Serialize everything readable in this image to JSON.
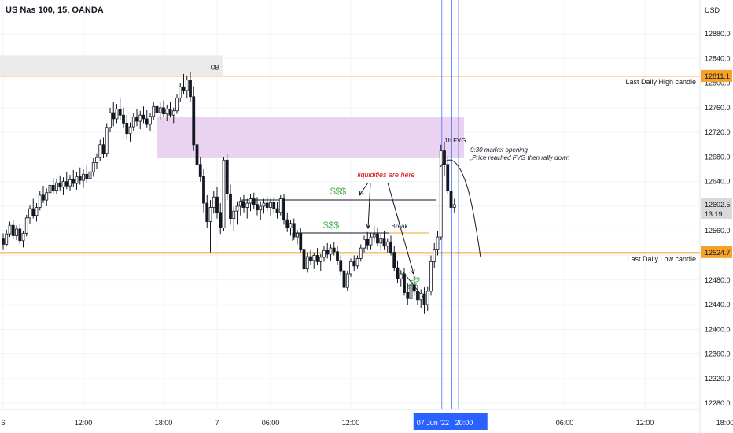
{
  "header": {
    "title": "US Nas 100, 15, OANDA",
    "currency": "USD"
  },
  "colors": {
    "bull": "#ffffff",
    "bear": "#131722",
    "wick": "#131722",
    "level": "#f7a128",
    "fvg_zone": "#ead3f0",
    "ob_zone": "#ebebeb",
    "grid": "#f0f3fa",
    "vlines": "#2962ff",
    "dollar": "#4caf50",
    "note_red": "#d50000"
  },
  "chart_data": {
    "type": "candlestick",
    "y_axis": {
      "min": 12270,
      "max": 12935,
      "ticks": [
        12280,
        12320,
        12360,
        12400,
        12440,
        12480,
        12520,
        12560,
        12600,
        12640,
        12680,
        12720,
        12760,
        12800,
        12840,
        12880
      ]
    },
    "x_axis": {
      "ticks": [
        {
          "label": "6",
          "bar": 0
        },
        {
          "label": "12:00",
          "bar": 24
        },
        {
          "label": "18:00",
          "bar": 48
        },
        {
          "label": "7",
          "bar": 64
        },
        {
          "label": "06:00",
          "bar": 80
        },
        {
          "label": "12:00",
          "bar": 104
        },
        {
          "label": "06:00",
          "bar": 168
        },
        {
          "label": "12:00",
          "bar": 192
        },
        {
          "label": "18:00",
          "bar": 216
        }
      ],
      "highlight": {
        "label": "07 Jun '22",
        "time": "20:00"
      }
    },
    "price_labels": [
      {
        "value": 12811.1,
        "text": "12811.1",
        "color": "#f7a128"
      },
      {
        "value": 12602.5,
        "text": "12602.5",
        "sub": "13:19",
        "color": "#d9d9d9"
      },
      {
        "value": 12524.7,
        "text": "12524.7",
        "color": "#f7a128"
      }
    ],
    "levels": [
      {
        "price": 12811.1,
        "label": "Last Daily High candle"
      },
      {
        "price": 12524.7,
        "label": "Last Daily Low candle"
      }
    ],
    "zones": [
      {
        "name": "OB",
        "from_bar": 0,
        "to_bar": 70,
        "top": 12845,
        "bottom": 12811
      },
      {
        "name": "1h FVG",
        "from_bar": 49,
        "to_bar": 145,
        "top": 12745,
        "bottom": 12678
      }
    ],
    "vertical_lines_bars": [
      131,
      134,
      136
    ],
    "candles": [
      [
        12548,
        12556,
        12530,
        12538
      ],
      [
        12538,
        12562,
        12535,
        12555
      ],
      [
        12555,
        12575,
        12550,
        12569
      ],
      [
        12569,
        12578,
        12548,
        12552
      ],
      [
        12552,
        12569,
        12545,
        12563
      ],
      [
        12563,
        12572,
        12538,
        12544
      ],
      [
        12544,
        12560,
        12533,
        12556
      ],
      [
        12556,
        12586,
        12551,
        12581
      ],
      [
        12581,
        12601,
        12572,
        12596
      ],
      [
        12596,
        12612,
        12580,
        12585
      ],
      [
        12585,
        12605,
        12575,
        12598
      ],
      [
        12598,
        12625,
        12593,
        12618
      ],
      [
        12618,
        12633,
        12605,
        12610
      ],
      [
        12610,
        12629,
        12600,
        12622
      ],
      [
        12622,
        12642,
        12615,
        12634
      ],
      [
        12634,
        12646,
        12620,
        12626
      ],
      [
        12626,
        12645,
        12619,
        12638
      ],
      [
        12638,
        12650,
        12625,
        12631
      ],
      [
        12631,
        12647,
        12618,
        12640
      ],
      [
        12640,
        12656,
        12628,
        12633
      ],
      [
        12633,
        12651,
        12625,
        12643
      ],
      [
        12643,
        12659,
        12631,
        12637
      ],
      [
        12637,
        12655,
        12627,
        12648
      ],
      [
        12648,
        12663,
        12635,
        12642
      ],
      [
        12642,
        12660,
        12630,
        12652
      ],
      [
        12652,
        12666,
        12638,
        12645
      ],
      [
        12645,
        12664,
        12633,
        12656
      ],
      [
        12656,
        12678,
        12648,
        12671
      ],
      [
        12671,
        12686,
        12660,
        12679
      ],
      [
        12679,
        12708,
        12674,
        12700
      ],
      [
        12700,
        12712,
        12678,
        12686
      ],
      [
        12686,
        12735,
        12680,
        12728
      ],
      [
        12728,
        12760,
        12720,
        12752
      ],
      [
        12752,
        12770,
        12730,
        12742
      ],
      [
        12742,
        12766,
        12735,
        12758
      ],
      [
        12758,
        12775,
        12740,
        12748
      ],
      [
        12748,
        12760,
        12728,
        12735
      ],
      [
        12735,
        12748,
        12710,
        12718
      ],
      [
        12718,
        12736,
        12705,
        12729
      ],
      [
        12729,
        12752,
        12722,
        12745
      ],
      [
        12745,
        12758,
        12730,
        12738
      ],
      [
        12738,
        12755,
        12725,
        12748
      ],
      [
        12748,
        12762,
        12735,
        12742
      ],
      [
        12742,
        12756,
        12728,
        12733
      ],
      [
        12733,
        12752,
        12722,
        12746
      ],
      [
        12746,
        12770,
        12740,
        12762
      ],
      [
        12762,
        12775,
        12745,
        12752
      ],
      [
        12752,
        12768,
        12740,
        12760
      ],
      [
        12760,
        12772,
        12745,
        12750
      ],
      [
        12750,
        12765,
        12738,
        12758
      ],
      [
        12758,
        12770,
        12744,
        12748
      ],
      [
        12748,
        12760,
        12735,
        12755
      ],
      [
        12755,
        12782,
        12750,
        12776
      ],
      [
        12776,
        12800,
        12770,
        12794
      ],
      [
        12794,
        12815,
        12782,
        12788
      ],
      [
        12788,
        12811,
        12775,
        12805
      ],
      [
        12805,
        12818,
        12770,
        12778
      ],
      [
        12778,
        12795,
        12690,
        12700
      ],
      [
        12700,
        12710,
        12655,
        12668
      ],
      [
        12668,
        12680,
        12640,
        12648
      ],
      [
        12648,
        12660,
        12590,
        12605
      ],
      [
        12605,
        12618,
        12565,
        12575
      ],
      [
        12575,
        12610,
        12525,
        12598
      ],
      [
        12598,
        12625,
        12588,
        12615
      ],
      [
        12615,
        12632,
        12580,
        12590
      ],
      [
        12590,
        12605,
        12555,
        12565
      ],
      [
        12565,
        12680,
        12560,
        12675
      ],
      [
        12675,
        12685,
        12610,
        12620
      ],
      [
        12620,
        12635,
        12570,
        12580
      ],
      [
        12580,
        12600,
        12560,
        12592
      ],
      [
        12592,
        12608,
        12570,
        12600
      ],
      [
        12600,
        12615,
        12585,
        12608
      ],
      [
        12608,
        12618,
        12590,
        12598
      ],
      [
        12598,
        12612,
        12580,
        12605
      ],
      [
        12605,
        12620,
        12592,
        12612
      ],
      [
        12612,
        12622,
        12595,
        12603
      ],
      [
        12603,
        12615,
        12585,
        12594
      ],
      [
        12594,
        12608,
        12578,
        12600
      ],
      [
        12600,
        12612,
        12588,
        12605
      ],
      [
        12605,
        12616,
        12592,
        12598
      ],
      [
        12598,
        12612,
        12585,
        12606
      ],
      [
        12606,
        12615,
        12590,
        12596
      ],
      [
        12596,
        12607,
        12580,
        12590
      ],
      [
        12590,
        12618,
        12585,
        12612
      ],
      [
        12612,
        12620,
        12570,
        12578
      ],
      [
        12578,
        12590,
        12558,
        12565
      ],
      [
        12565,
        12578,
        12552,
        12572
      ],
      [
        12572,
        12580,
        12545,
        12550
      ],
      [
        12550,
        12562,
        12538,
        12556
      ],
      [
        12556,
        12565,
        12525,
        12530
      ],
      [
        12530,
        12540,
        12490,
        12498
      ],
      [
        12498,
        12525,
        12492,
        12518
      ],
      [
        12518,
        12530,
        12505,
        12512
      ],
      [
        12512,
        12525,
        12498,
        12520
      ],
      [
        12520,
        12532,
        12505,
        12510
      ],
      [
        12510,
        12522,
        12495,
        12517
      ],
      [
        12517,
        12535,
        12510,
        12528
      ],
      [
        12528,
        12540,
        12515,
        12522
      ],
      [
        12522,
        12538,
        12512,
        12532
      ],
      [
        12532,
        12542,
        12520,
        12526
      ],
      [
        12526,
        12536,
        12505,
        12512
      ],
      [
        12512,
        12520,
        12488,
        12495
      ],
      [
        12495,
        12505,
        12462,
        12468
      ],
      [
        12468,
        12495,
        12463,
        12490
      ],
      [
        12490,
        12515,
        12485,
        12510
      ],
      [
        12510,
        12520,
        12495,
        12503
      ],
      [
        12503,
        12520,
        12498,
        12515
      ],
      [
        12515,
        12538,
        12510,
        12532
      ],
      [
        12532,
        12552,
        12525,
        12546
      ],
      [
        12546,
        12558,
        12530,
        12537
      ],
      [
        12537,
        12556,
        12530,
        12550
      ],
      [
        12550,
        12568,
        12542,
        12555
      ],
      [
        12555,
        12565,
        12535,
        12540
      ],
      [
        12540,
        12555,
        12528,
        12548
      ],
      [
        12548,
        12560,
        12530,
        12535
      ],
      [
        12535,
        12548,
        12525,
        12542
      ],
      [
        12542,
        12552,
        12520,
        12525
      ],
      [
        12525,
        12535,
        12495,
        12500
      ],
      [
        12500,
        12512,
        12475,
        12482
      ],
      [
        12482,
        12496,
        12470,
        12490
      ],
      [
        12490,
        12500,
        12455,
        12460
      ],
      [
        12460,
        12475,
        12440,
        12450
      ],
      [
        12450,
        12478,
        12445,
        12472
      ],
      [
        12472,
        12485,
        12455,
        12462
      ],
      [
        12462,
        12472,
        12440,
        12448
      ],
      [
        12448,
        12465,
        12435,
        12458
      ],
      [
        12458,
        12468,
        12425,
        12440
      ],
      [
        12440,
        12470,
        12430,
        12462
      ],
      [
        12462,
        12520,
        12455,
        12510
      ],
      [
        12510,
        12540,
        12500,
        12530
      ],
      [
        12530,
        12560,
        12520,
        12550
      ],
      [
        12550,
        12700,
        12545,
        12690
      ],
      [
        12690,
        12705,
        12650,
        12668
      ],
      [
        12668,
        12680,
        12620,
        12625
      ],
      [
        12625,
        12640,
        12585,
        12598
      ],
      [
        12598,
        12612,
        12590,
        12602.5
      ]
    ],
    "annotations": [
      {
        "text": "OB"
      },
      {
        "text": "1h FVG"
      },
      {
        "text": "$$$"
      },
      {
        "text": "$$$"
      },
      {
        "text": "$$$"
      },
      {
        "text": "liquidities are here"
      },
      {
        "text": "Break"
      },
      {
        "text": "9:30 market opening"
      },
      {
        "text": ",Price reached FVG then rally down"
      }
    ]
  }
}
